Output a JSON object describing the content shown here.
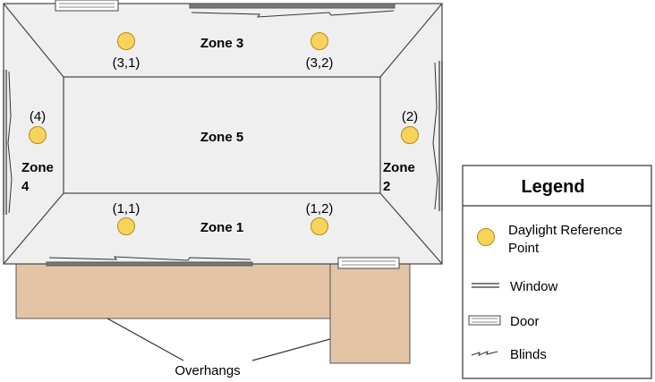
{
  "zones": {
    "zone1": "Zone 1",
    "zone3": "Zone 3",
    "zone5": "Zone 5",
    "zone2": [
      "Zone",
      "2"
    ],
    "zone4": [
      "Zone",
      "4"
    ]
  },
  "reference_points": {
    "p31": "(3,1)",
    "p32": "(3,2)",
    "p11": "(1,1)",
    "p12": "(1,2)",
    "p2": "(2)",
    "p4": "(4)"
  },
  "overhang_label": "Overhangs",
  "legend": {
    "title": "Legend",
    "daylight_point": [
      "Daylight Reference",
      "Point"
    ],
    "window": "Window",
    "door": "Door",
    "blinds": "Blinds"
  },
  "colors": {
    "room_fill": "#efefef",
    "overhang_fill": "#e3c4a6",
    "ref_point_fill": "#f7d35c",
    "ref_point_stroke": "#b68a1a"
  }
}
